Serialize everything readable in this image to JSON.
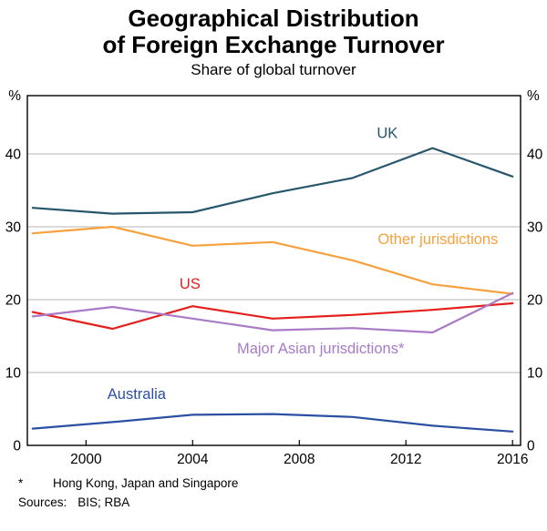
{
  "chart_data": {
    "type": "line",
    "title": "Geographical Distribution of Foreign Exchange Turnover",
    "title_lines": [
      "Geographical Distribution",
      "of Foreign Exchange Turnover"
    ],
    "subtitle": "Share of global turnover",
    "unit": "%",
    "x": [
      1998,
      2001,
      2004,
      2007,
      2010,
      2013,
      2016
    ],
    "xlim": [
      1997.8,
      2016.3
    ],
    "ylim": [
      0,
      48
    ],
    "yticks": [
      0,
      10,
      20,
      30,
      40
    ],
    "xticks": [
      2000,
      2004,
      2008,
      2012,
      2016
    ],
    "grid": "horizontal",
    "legend_position": "inline-labels",
    "series": [
      {
        "id": "uk",
        "name": "UK",
        "color": "#26566B",
        "values": [
          32.6,
          31.8,
          32.0,
          34.6,
          36.7,
          40.8,
          36.9
        ],
        "label": {
          "text": "UK",
          "x": 2011.3,
          "y": 42.2
        }
      },
      {
        "id": "other",
        "name": "Other jurisdictions",
        "color": "#F7A13D",
        "values": [
          29.1,
          30.0,
          27.4,
          27.9,
          25.4,
          22.1,
          20.8
        ],
        "label": {
          "text": "Other jurisdictions",
          "x": 2013.2,
          "y": 27.6
        }
      },
      {
        "id": "us",
        "name": "US",
        "color": "#E3201B",
        "values": [
          18.3,
          16.0,
          19.1,
          17.4,
          17.9,
          18.6,
          19.5
        ],
        "label": {
          "text": "US",
          "x": 2003.9,
          "y": 21.5
        }
      },
      {
        "id": "asia",
        "name": "Major Asian jurisdictions",
        "color": "#A97BC6",
        "values": [
          17.7,
          19.0,
          17.4,
          15.8,
          16.1,
          15.5,
          20.9
        ],
        "label": {
          "text": "Major Asian jurisdictions*",
          "x": 2008.8,
          "y": 12.6
        }
      },
      {
        "id": "australia",
        "name": "Australia",
        "color": "#2B50A3",
        "values": [
          2.3,
          3.2,
          4.2,
          4.3,
          3.9,
          2.7,
          1.9
        ],
        "label": {
          "text": "Australia",
          "x": 2001.9,
          "y": 6.4
        }
      }
    ]
  },
  "footnote": {
    "marker": "*",
    "text": "Hong Kong, Japan and Singapore"
  },
  "sources": {
    "label": "Sources:",
    "text": "BIS; RBA"
  }
}
